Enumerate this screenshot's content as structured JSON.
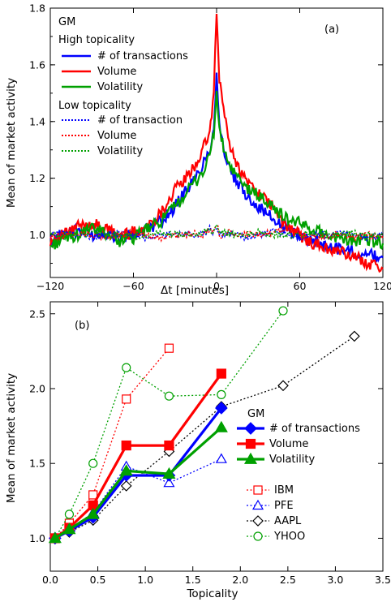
{
  "chart_data": [
    {
      "type": "line",
      "panel_label": "(a)",
      "xlabel": "Δt [minutes]",
      "ylabel": "Mean of market activity",
      "xlim": [
        -120,
        120
      ],
      "ylim": [
        0.85,
        1.8
      ],
      "x_ticks": [
        -120,
        -60,
        0,
        60,
        120
      ],
      "y_ticks": [
        1.0,
        1.2,
        1.4,
        1.6,
        1.8
      ],
      "grid": false,
      "legend_placement": "top-left",
      "legend": {
        "stock": "GM",
        "group_high": "High topicality",
        "group_low": "Low topicality"
      },
      "x": [
        -120,
        -110,
        -100,
        -90,
        -80,
        -70,
        -60,
        -50,
        -40,
        -30,
        -20,
        -15,
        -10,
        -5,
        -2,
        0,
        2,
        5,
        10,
        15,
        20,
        30,
        40,
        50,
        60,
        70,
        80,
        90,
        100,
        110,
        120
      ],
      "series": [
        {
          "name": "# of transactions",
          "group": "High topicality",
          "color": "#0000ff",
          "style": "solid",
          "values": [
            0.97,
            1.01,
            1.02,
            1.0,
            1.01,
            0.99,
            1.0,
            1.02,
            1.05,
            1.1,
            1.17,
            1.2,
            1.25,
            1.3,
            1.38,
            1.57,
            1.4,
            1.3,
            1.22,
            1.18,
            1.15,
            1.1,
            1.06,
            1.02,
            1.0,
            0.98,
            0.96,
            0.95,
            0.94,
            0.93,
            0.92
          ]
        },
        {
          "name": "Volume",
          "group": "High topicality",
          "color": "#ff0000",
          "style": "solid",
          "values": [
            0.98,
            1.0,
            1.03,
            1.04,
            1.02,
            1.0,
            1.01,
            1.03,
            1.08,
            1.16,
            1.21,
            1.25,
            1.3,
            1.36,
            1.5,
            1.78,
            1.55,
            1.45,
            1.3,
            1.25,
            1.2,
            1.15,
            1.1,
            1.03,
            1.0,
            0.97,
            0.95,
            0.94,
            0.92,
            0.9,
            0.88
          ]
        },
        {
          "name": "Volatility",
          "group": "High topicality",
          "color": "#00a000",
          "style": "solid",
          "values": [
            0.96,
            0.99,
            1.0,
            1.02,
            1.01,
            0.98,
            0.99,
            1.02,
            1.05,
            1.1,
            1.16,
            1.19,
            1.22,
            1.28,
            1.36,
            1.5,
            1.38,
            1.3,
            1.24,
            1.2,
            1.17,
            1.14,
            1.1,
            1.06,
            1.04,
            1.02,
            1.0,
            0.99,
            0.98,
            0.98,
            0.97
          ]
        },
        {
          "name": "# of transaction",
          "group": "Low topicality",
          "color": "#0000ff",
          "style": "dotted",
          "values": [
            1.0,
            1.01,
            1.0,
            0.99,
            1.0,
            1.01,
            1.0,
            0.99,
            1.0,
            1.0,
            1.01,
            1.0,
            1.0,
            1.02,
            1.01,
            1.03,
            1.0,
            1.0,
            1.01,
            1.0,
            0.99,
            1.0,
            1.01,
            1.0,
            0.99,
            1.0,
            1.0,
            1.01,
            1.0,
            0.99,
            1.0
          ]
        },
        {
          "name": "Volume",
          "group": "Low topicality",
          "color": "#ff0000",
          "style": "dotted",
          "values": [
            0.99,
            1.0,
            1.01,
            1.0,
            0.99,
            1.0,
            1.01,
            1.0,
            0.99,
            1.0,
            1.0,
            1.01,
            1.0,
            1.01,
            1.02,
            1.04,
            1.0,
            1.0,
            1.01,
            1.0,
            1.0,
            1.0,
            1.01,
            1.02,
            1.0,
            0.99,
            1.0,
            1.0,
            0.99,
            1.0,
            0.99
          ]
        },
        {
          "name": "Volatility",
          "group": "Low topicality",
          "color": "#00a000",
          "style": "dotted",
          "values": [
            1.0,
            0.99,
            1.0,
            1.01,
            1.0,
            1.0,
            0.99,
            1.0,
            1.01,
            1.0,
            1.0,
            1.0,
            1.01,
            1.02,
            1.01,
            1.03,
            1.02,
            1.01,
            1.0,
            1.0,
            1.0,
            1.01,
            1.0,
            1.0,
            1.0,
            1.01,
            1.0,
            1.0,
            1.01,
            1.0,
            1.0
          ]
        }
      ]
    },
    {
      "type": "line",
      "panel_label": "(b)",
      "xlabel": "Topicality",
      "ylabel": "Mean of market activity",
      "xlim": [
        0,
        3.5
      ],
      "ylim": [
        0.78,
        2.58
      ],
      "x_ticks": [
        0.0,
        0.5,
        1.0,
        1.5,
        2.0,
        2.5,
        3.0,
        3.5
      ],
      "y_ticks": [
        1.0,
        1.5,
        2.0,
        2.5
      ],
      "grid": false,
      "legend_placement": "right",
      "legend": {
        "stock": "GM"
      },
      "series": [
        {
          "name": "# of transactions",
          "color": "#0000ff",
          "style": "solid",
          "marker": "diamond-filled",
          "x": [
            0.05,
            0.2,
            0.45,
            0.8,
            1.25,
            1.8
          ],
          "values": [
            1.0,
            1.05,
            1.14,
            1.42,
            1.42,
            1.87
          ]
        },
        {
          "name": "Volume",
          "color": "#ff0000",
          "style": "solid",
          "marker": "square-filled",
          "x": [
            0.05,
            0.2,
            0.45,
            0.8,
            1.25,
            1.8
          ],
          "values": [
            1.0,
            1.07,
            1.22,
            1.62,
            1.62,
            2.1
          ]
        },
        {
          "name": "Volatility",
          "color": "#00a000",
          "style": "solid",
          "marker": "triangle-filled",
          "x": [
            0.05,
            0.2,
            0.45,
            0.8,
            1.25,
            1.8
          ],
          "values": [
            1.0,
            1.06,
            1.16,
            1.45,
            1.43,
            1.74
          ]
        },
        {
          "name": "IBM",
          "color": "#ff0000",
          "style": "dotted",
          "marker": "square-open",
          "x": [
            0.05,
            0.2,
            0.45,
            0.8,
            1.25
          ],
          "values": [
            1.0,
            1.1,
            1.29,
            1.93,
            2.27
          ]
        },
        {
          "name": "PFE",
          "color": "#0000ff",
          "style": "dotted",
          "marker": "triangle-open",
          "x": [
            0.05,
            0.2,
            0.45,
            0.8,
            1.25,
            1.8
          ],
          "values": [
            1.0,
            1.06,
            1.17,
            1.48,
            1.37,
            1.53
          ]
        },
        {
          "name": "AAPL",
          "color": "#000000",
          "style": "dotted",
          "marker": "diamond-open",
          "x": [
            0.05,
            0.2,
            0.45,
            0.8,
            1.25,
            1.8,
            2.45,
            3.2
          ],
          "values": [
            1.0,
            1.04,
            1.12,
            1.35,
            1.58,
            1.88,
            2.02,
            2.35
          ]
        },
        {
          "name": "YHOO",
          "color": "#00a000",
          "style": "dotted",
          "marker": "circle-open",
          "x": [
            0.05,
            0.2,
            0.45,
            0.8,
            1.25,
            1.8,
            2.45
          ],
          "values": [
            1.0,
            1.16,
            1.5,
            2.14,
            1.95,
            1.96,
            2.52
          ]
        }
      ]
    }
  ]
}
